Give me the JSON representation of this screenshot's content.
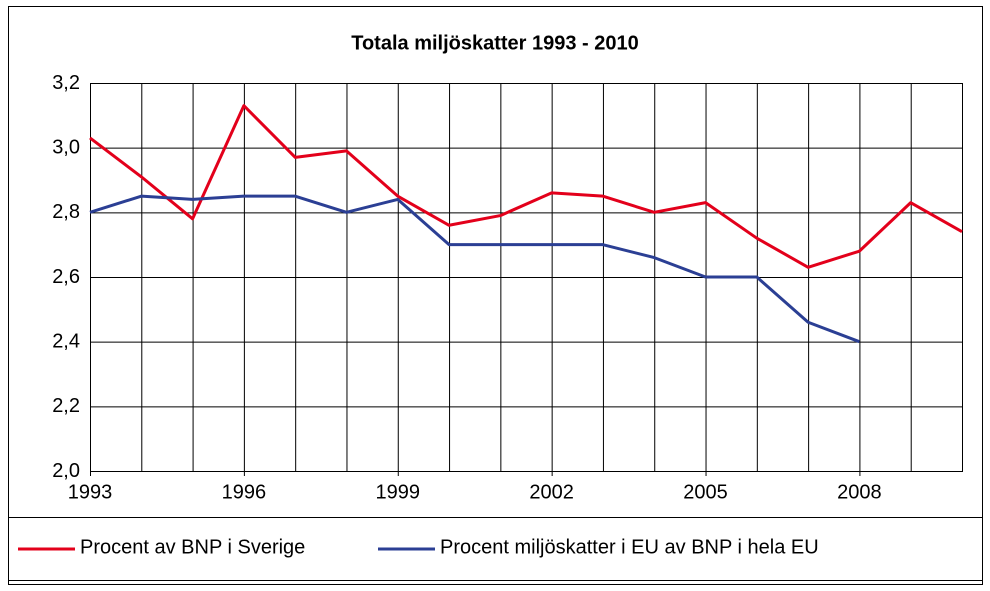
{
  "chart_data": {
    "type": "line",
    "title": "Totala miljöskatter 1993 - 2010",
    "x": [
      1993,
      1994,
      1995,
      1996,
      1997,
      1998,
      1999,
      2000,
      2001,
      2002,
      2003,
      2004,
      2005,
      2006,
      2007,
      2008,
      2009,
      2010
    ],
    "series": [
      {
        "name": "Procent av BNP i Sverige",
        "color": "#e3001b",
        "values": [
          3.03,
          2.91,
          2.78,
          3.13,
          2.97,
          2.99,
          2.85,
          2.76,
          2.79,
          2.86,
          2.85,
          2.8,
          2.83,
          2.72,
          2.63,
          2.68,
          2.83,
          2.74
        ]
      },
      {
        "name": "Procent miljöskatter i EU av BNP i hela EU",
        "color": "#2b3f94",
        "values": [
          2.8,
          2.85,
          2.84,
          2.85,
          2.85,
          2.8,
          2.84,
          2.7,
          2.7,
          2.7,
          2.7,
          2.66,
          2.6,
          2.6,
          2.46,
          2.4,
          null,
          null
        ]
      }
    ],
    "xlim": [
      1993,
      2010
    ],
    "xticks": [
      1993,
      1996,
      1999,
      2002,
      2005,
      2008
    ],
    "ylim": [
      2.0,
      3.2
    ],
    "yticks": [
      {
        "value": 2.0,
        "label": "2,0"
      },
      {
        "value": 2.2,
        "label": "2,2"
      },
      {
        "value": 2.4,
        "label": "2,4"
      },
      {
        "value": 2.6,
        "label": "2,6"
      },
      {
        "value": 2.8,
        "label": "2,8"
      },
      {
        "value": 3.0,
        "label": "3,0"
      },
      {
        "value": 3.2,
        "label": "3,2"
      }
    ],
    "grid": true
  }
}
